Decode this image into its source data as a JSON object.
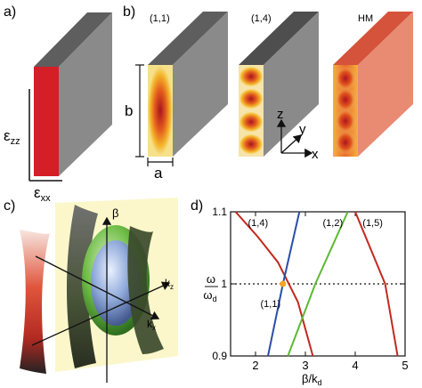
{
  "panels": {
    "a": {
      "label": "a)",
      "axis_vertical": "ε",
      "axis_vertical_sub": "zz",
      "axis_horizontal": "ε",
      "axis_horizontal_sub": "xx"
    },
    "b": {
      "label": "b)",
      "dim_height": "b",
      "dim_width": "a",
      "mode_labels": [
        "(1,1)",
        "(1,4)",
        "HM"
      ],
      "axes": {
        "z": "z",
        "y": "y",
        "x": "x"
      }
    },
    "c": {
      "label": "c)",
      "axis_beta": "β",
      "axis_kz": "k",
      "axis_kz_sub": "z",
      "axis_kx": "k",
      "axis_kx_sub": "x"
    },
    "d": {
      "label": "d)"
    }
  },
  "chart_data": {
    "type": "line",
    "xlabel": "β/k",
    "xlabel_sub": "d",
    "ylabel": "ω",
    "ylabel_sub": "d",
    "ylabel_denominator": "ω",
    "xlim": [
      1.5,
      5
    ],
    "ylim": [
      0.9,
      1.1
    ],
    "x_ticks": [
      "2",
      "3",
      "4",
      "5"
    ],
    "x_tick_values": [
      2,
      3,
      4,
      5
    ],
    "y_ticks": [
      "0.9",
      "1",
      "1.1"
    ],
    "y_tick_values": [
      0.9,
      1.0,
      1.1
    ],
    "reference_line": {
      "y": 1.0,
      "style": "dotted"
    },
    "series": [
      {
        "name": "(1,4)",
        "color": "#c4281e",
        "x": [
          1.6,
          2.05,
          2.45,
          2.85,
          3.15
        ],
        "y": [
          1.1,
          1.065,
          1.03,
          0.975,
          0.9
        ]
      },
      {
        "name": "(1,1)",
        "color": "#2b4da8",
        "x": [
          2.25,
          2.55,
          2.88
        ],
        "y": [
          0.9,
          1.0,
          1.1
        ]
      },
      {
        "name": "(1,2)",
        "color": "#5cb833",
        "x": [
          2.65,
          3.2,
          3.85
        ],
        "y": [
          0.9,
          1.0,
          1.1
        ]
      },
      {
        "name": "(1,5)",
        "color": "#c4281e",
        "x": [
          4.0,
          4.3,
          4.6,
          4.85
        ],
        "y": [
          1.1,
          1.05,
          1.0,
          0.9
        ]
      }
    ],
    "crossing_point": {
      "x": 2.55,
      "y": 1.0,
      "color": "#f5a623"
    }
  }
}
